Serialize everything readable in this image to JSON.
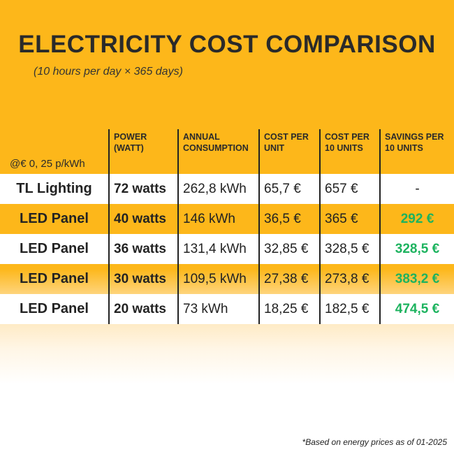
{
  "title": "ELECTRICITY COST COMPARISON",
  "subtitle": "(10 hours per day × 365 days)",
  "table": {
    "rate_label": "@€ 0, 25 p/kWh",
    "headers": [
      "POWER (WATT)",
      "ANNUAL CONSUMPTION",
      "COST PER UNIT",
      "COST PER 10 UNITS",
      "SAVINGS PER 10 UNITS"
    ],
    "rows": [
      {
        "name": "TL Lighting",
        "power": "72 watts",
        "consumption": "262,8 kWh",
        "cost_unit": "65,7 €",
        "cost_10": "657 €",
        "savings": "-"
      },
      {
        "name": "LED Panel",
        "power": "40 watts",
        "consumption": "146 kWh",
        "cost_unit": "36,5 €",
        "cost_10": "365 €",
        "savings": "292 €"
      },
      {
        "name": "LED Panel",
        "power": "36 watts",
        "consumption": "131,4 kWh",
        "cost_unit": "32,85 €",
        "cost_10": "328,5 €",
        "savings": "328,5 €"
      },
      {
        "name": "LED Panel",
        "power": "30 watts",
        "consumption": "109,5 kWh",
        "cost_unit": "27,38 €",
        "cost_10": "273,8 €",
        "savings": "383,2 €"
      },
      {
        "name": "LED Panel",
        "power": "20 watts",
        "consumption": "73 kWh",
        "cost_unit": "18,25 €",
        "cost_10": "182,5 €",
        "savings": "474,5 €"
      }
    ]
  },
  "footnote": "*Based on energy prices as of 01-2025",
  "colors": {
    "background": "#FDB71A",
    "savings": "#1DB35F"
  }
}
